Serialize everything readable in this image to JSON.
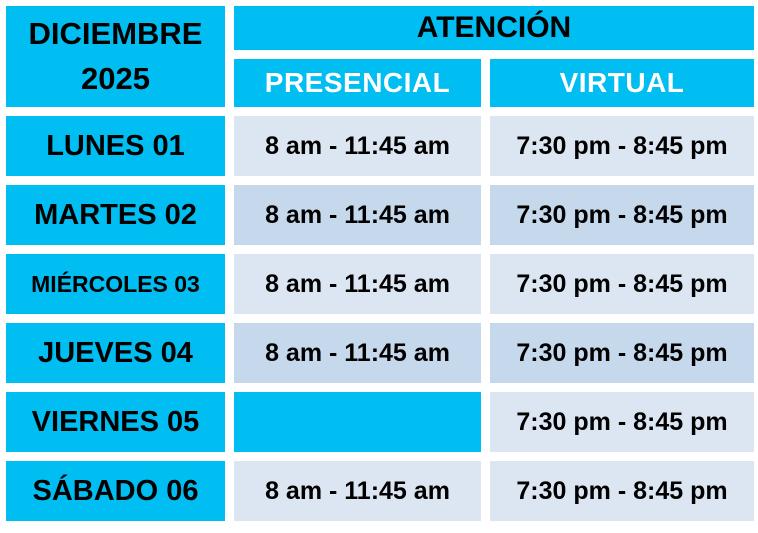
{
  "title": {
    "line1": "DICIEMBRE",
    "line2": "2025"
  },
  "header": {
    "atencion_label": "ATENCIÓN",
    "presencial_label": "PRESENCIAL",
    "virtual_label": "VIRTUAL"
  },
  "rows": [
    {
      "day": "LUNES 01",
      "presencial": "8 am - 11:45 am",
      "virtual": "7:30 pm - 8:45 pm"
    },
    {
      "day": "MARTES 02",
      "presencial": "8 am - 11:45 am",
      "virtual": "7:30 pm - 8:45 pm"
    },
    {
      "day": "MIÉRCOLES 03",
      "presencial": "8 am - 11:45 am",
      "virtual": "7:30 pm - 8:45 pm"
    },
    {
      "day": "JUEVES 04",
      "presencial": "8 am - 11:45 am",
      "virtual": "7:30 pm - 8:45 pm"
    },
    {
      "day": "VIERNES 05",
      "presencial": "",
      "virtual": "7:30 pm - 8:45 pm"
    },
    {
      "day": "SÁBADO 06",
      "presencial": "8 am - 11:45 am",
      "virtual": "7:30 pm - 8:45 pm"
    }
  ],
  "colors": {
    "cyan": "#00BDF2",
    "row_light": "#DCE6F2",
    "row_medium": "#C5D8EC",
    "day_text": "#000000",
    "subheader_text": "#FFFFFF",
    "background": "#FFFFFF"
  }
}
